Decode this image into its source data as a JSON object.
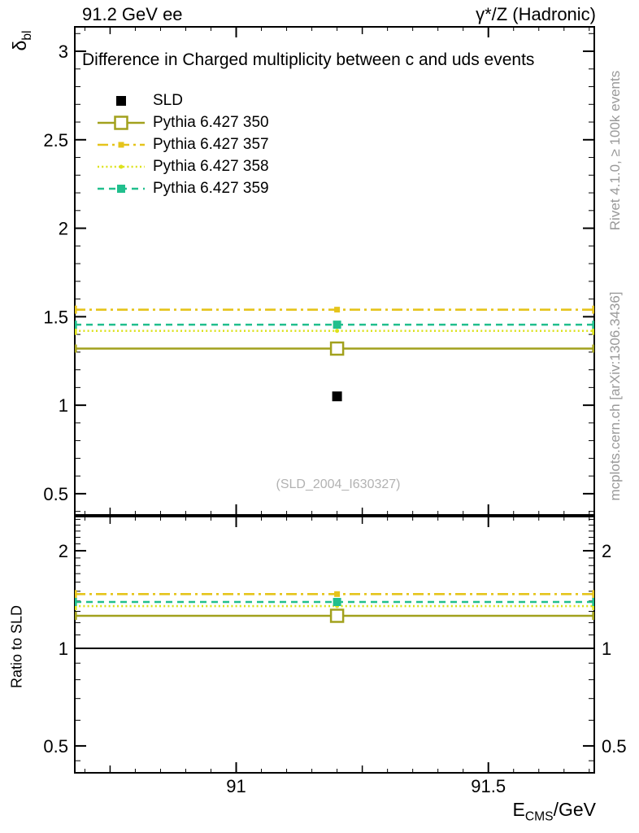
{
  "header": {
    "left": "91.2 GeV ee",
    "right": "γ*/Z (Hadronic)"
  },
  "title": "Difference in Charged multiplicity between c and uds events",
  "watermark": "(SLD_2004_I630327)",
  "side_notes": {
    "top": "Rivet 4.1.0, ≥ 100k events",
    "bottom": "mcplots.cern.ch [arXiv:1306.3436]"
  },
  "axes": {
    "x_label": {
      "main": "E",
      "sub": "CMS",
      "rest": "/GeV"
    },
    "y_label": {
      "main": "δ",
      "sub": "bl"
    },
    "ratio_label": "Ratio to SLD"
  },
  "chart_data": {
    "type": "line",
    "title": "Difference in Charged multiplicity between c and uds events",
    "xlabel": "E_CMS/GeV",
    "ylabel": "delta_bl",
    "ratio_ylabel": "Ratio to SLD",
    "legend_position": "top-left",
    "grid": false,
    "x": {
      "min": 90.68,
      "max": 91.71,
      "minor_step": 0.05,
      "medium_step": 0.25,
      "major_ticks": [
        91,
        91.5
      ],
      "major_tick_labels": [
        "91",
        "91.5"
      ]
    },
    "main_y": {
      "scale": "linear",
      "min": 0.38,
      "max": 3.138,
      "major_ticks": [
        0.5,
        1,
        1.5,
        2,
        2.5,
        3
      ],
      "major_tick_labels": [
        "0.5",
        "1",
        "1.5",
        "2",
        "2.5",
        "3"
      ],
      "minor_step": 0.1
    },
    "ratio_y": {
      "scale": "log",
      "min": 0.413,
      "max": 2.55,
      "major_ticks": [
        0.5,
        1,
        2
      ],
      "major_tick_labels": [
        "0.5",
        "1",
        "2"
      ],
      "minor_ticks": [
        0.45,
        0.6,
        0.7,
        0.8,
        0.9,
        1.1,
        1.2,
        1.3,
        1.4,
        1.5,
        1.6,
        1.7,
        1.8,
        1.9,
        2.1,
        2.2,
        2.3,
        2.4,
        2.5
      ],
      "reference_line": 1.0
    },
    "point_x": 91.2,
    "series": [
      {
        "name": "SLD",
        "color": "#000000",
        "line": "none",
        "marker": "filled-square",
        "marker_size": 12,
        "value": 1.05,
        "ratio": null
      },
      {
        "name": "Pythia 6.427 350",
        "color": "#a2a11d",
        "line": "solid",
        "marker": "open-square",
        "marker_size": 15,
        "value": 1.32,
        "ratio": 1.26
      },
      {
        "name": "Pythia 6.427 357",
        "color": "#e5c41b",
        "line": "dashdot",
        "marker": "filled-square",
        "marker_size": 7,
        "value": 1.54,
        "ratio": 1.47
      },
      {
        "name": "Pythia 6.427 358",
        "color": "#dde21b",
        "line": "dotted",
        "marker": "filled-circle",
        "marker_size": 5,
        "value": 1.42,
        "ratio": 1.35
      },
      {
        "name": "Pythia 6.427 359",
        "color": "#21bf8d",
        "line": "dashed",
        "marker": "filled-square",
        "marker_size": 10,
        "value": 1.455,
        "ratio": 1.39
      }
    ]
  }
}
